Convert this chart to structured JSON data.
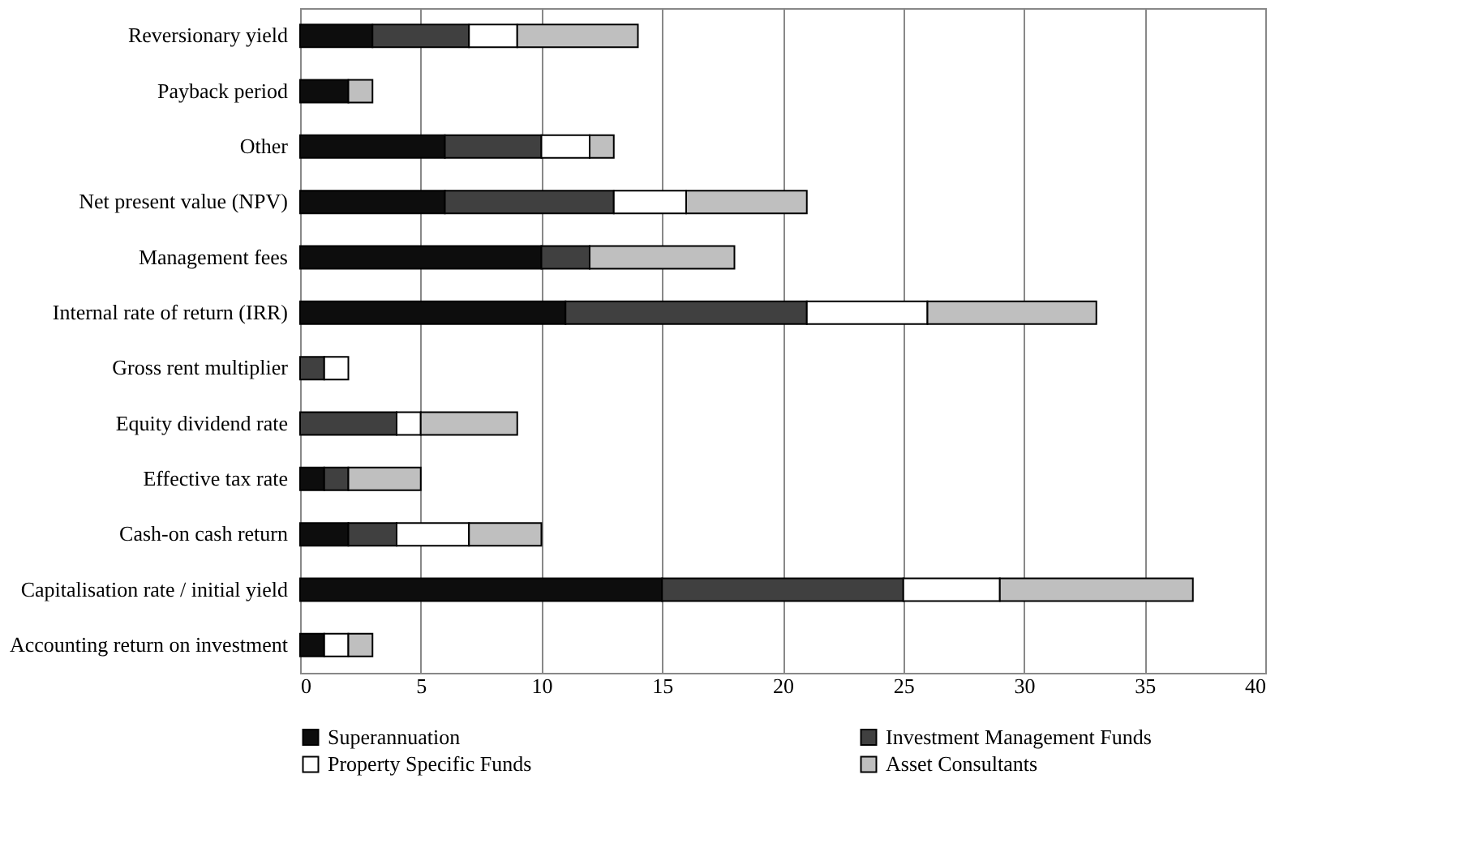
{
  "chart_data": {
    "type": "bar",
    "orientation": "horizontal",
    "stacked": true,
    "categories": [
      "Reversionary yield",
      "Payback period",
      "Other",
      "Net present value (NPV)",
      "Management fees",
      "Internal rate of return (IRR)",
      "Gross rent multiplier",
      "Equity dividend rate",
      "Effective tax rate",
      "Cash-on cash return",
      "Capitalisation rate / initial yield",
      "Accounting return on investment"
    ],
    "series": [
      {
        "name": "Superannuation",
        "color": "#0d0d0d",
        "values": [
          3,
          2,
          6,
          6,
          10,
          11,
          null,
          null,
          1,
          2,
          15,
          1
        ]
      },
      {
        "name": "Investment Management Funds",
        "color": "#404040",
        "values": [
          4,
          null,
          4,
          7,
          2,
          10,
          1,
          4,
          1,
          2,
          10,
          null
        ]
      },
      {
        "name": "Property Specific Funds",
        "color": "#ffffff",
        "values": [
          2,
          null,
          2,
          3,
          null,
          5,
          1,
          1,
          null,
          3,
          4,
          1
        ]
      },
      {
        "name": "Asset Consultants",
        "color": "#bfbfbf",
        "values": [
          5,
          1,
          1,
          5,
          6,
          7,
          null,
          4,
          3,
          3,
          8,
          1
        ]
      }
    ],
    "xlim": [
      0,
      40
    ],
    "xticks": [
      0,
      5,
      10,
      15,
      20,
      25,
      30,
      35,
      40
    ],
    "grid": "x",
    "legend": "bottom"
  }
}
